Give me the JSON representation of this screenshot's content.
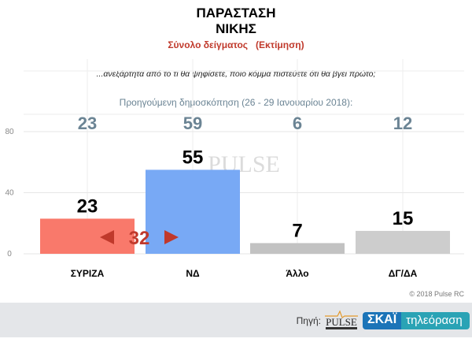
{
  "chart_data": {
    "type": "bar",
    "title": "ΠΑΡΑΣΤΑΣΗ ΝΙΚΗΣ",
    "title_lines": [
      "ΠΑΡΑΣΤΑΣΗ",
      "ΝΙΚΗΣ"
    ],
    "subtitle": "Σύνολο δείγματος   (Εκτίμηση)",
    "question": "...ανεξάρτητα από το τι θα ψηφίσετε, ποιο κόμμα πιστεύετε ότι θα βγει πρώτο;",
    "previous_label": "Προηγούμενη δημοσκόπηση (26 - 29 Ιανουαρίου 2018):",
    "categories": [
      "ΣΥΡΙΖΑ",
      "ΝΔ",
      "Άλλο",
      "ΔΓ/ΔΑ"
    ],
    "values": [
      23,
      55,
      7,
      15
    ],
    "previous_values": [
      23,
      59,
      6,
      12
    ],
    "colors": [
      "#f9796b",
      "#78a9f5",
      "#c2c2c2",
      "#cdcdcd"
    ],
    "ylim": [
      0,
      80
    ],
    "yticks": [
      0,
      40,
      80
    ],
    "grid": true,
    "annotation": {
      "text": "32",
      "color": "#c0392b",
      "between": [
        "ΣΥΡΙΖΑ",
        "ΝΔ"
      ]
    },
    "watermark": "PULSE"
  },
  "footer": {
    "copyright": "© 2018 Pulse RC",
    "source_label": "Πηγή:",
    "pulse_logo": "PULSE",
    "skai_logo": "ΣΚΑΪ",
    "skai_tv": "τηλεόραση"
  }
}
